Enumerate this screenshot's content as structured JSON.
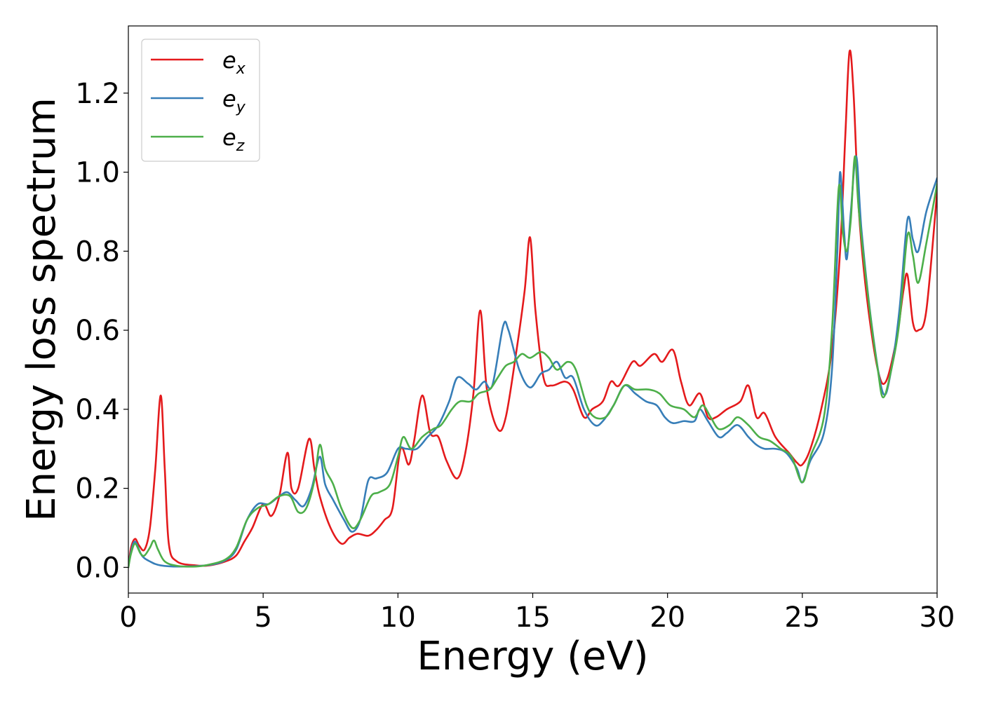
{
  "chart_data": {
    "type": "line",
    "title": "",
    "xlabel": "Energy (eV)",
    "ylabel": "Energy loss spectrum",
    "xlim": [
      0,
      30
    ],
    "ylim": [
      -0.065,
      1.37
    ],
    "xticks": [
      0,
      5,
      10,
      15,
      20,
      25,
      30
    ],
    "yticks": [
      0.0,
      0.2,
      0.4,
      0.6,
      0.8,
      1.0,
      1.2
    ],
    "xtick_labels": [
      "0",
      "5",
      "10",
      "15",
      "20",
      "25",
      "30"
    ],
    "ytick_labels": [
      "0.0",
      "0.2",
      "0.4",
      "0.6",
      "0.8",
      "1.0",
      "1.2"
    ],
    "grid": false,
    "legend_position": "top-left",
    "series": [
      {
        "name": "e_x",
        "label_base": "e",
        "label_sub": "x",
        "color": "#e41a1c",
        "points": [
          [
            0,
            0
          ],
          [
            0.1,
            0.05
          ],
          [
            0.25,
            0.072
          ],
          [
            0.4,
            0.055
          ],
          [
            0.6,
            0.045
          ],
          [
            0.8,
            0.1
          ],
          [
            1.0,
            0.25
          ],
          [
            1.2,
            0.435
          ],
          [
            1.35,
            0.25
          ],
          [
            1.5,
            0.06
          ],
          [
            1.8,
            0.015
          ],
          [
            2.5,
            0.005
          ],
          [
            3.0,
            0.005
          ],
          [
            3.6,
            0.015
          ],
          [
            4.0,
            0.03
          ],
          [
            4.3,
            0.065
          ],
          [
            4.6,
            0.1
          ],
          [
            5.0,
            0.16
          ],
          [
            5.3,
            0.13
          ],
          [
            5.6,
            0.18
          ],
          [
            5.9,
            0.29
          ],
          [
            6.05,
            0.2
          ],
          [
            6.3,
            0.2
          ],
          [
            6.7,
            0.325
          ],
          [
            6.9,
            0.25
          ],
          [
            7.1,
            0.18
          ],
          [
            7.5,
            0.1
          ],
          [
            7.9,
            0.06
          ],
          [
            8.2,
            0.075
          ],
          [
            8.5,
            0.085
          ],
          [
            8.9,
            0.08
          ],
          [
            9.2,
            0.095
          ],
          [
            9.5,
            0.12
          ],
          [
            9.8,
            0.15
          ],
          [
            10.1,
            0.3
          ],
          [
            10.4,
            0.26
          ],
          [
            10.6,
            0.32
          ],
          [
            10.9,
            0.435
          ],
          [
            11.2,
            0.34
          ],
          [
            11.5,
            0.33
          ],
          [
            11.8,
            0.27
          ],
          [
            12.2,
            0.225
          ],
          [
            12.5,
            0.29
          ],
          [
            12.8,
            0.44
          ],
          [
            13.05,
            0.65
          ],
          [
            13.3,
            0.45
          ],
          [
            13.7,
            0.35
          ],
          [
            14.0,
            0.38
          ],
          [
            14.4,
            0.55
          ],
          [
            14.7,
            0.7
          ],
          [
            14.9,
            0.835
          ],
          [
            15.1,
            0.65
          ],
          [
            15.4,
            0.48
          ],
          [
            15.7,
            0.46
          ],
          [
            16.2,
            0.47
          ],
          [
            16.5,
            0.45
          ],
          [
            16.9,
            0.38
          ],
          [
            17.2,
            0.4
          ],
          [
            17.6,
            0.42
          ],
          [
            17.9,
            0.47
          ],
          [
            18.2,
            0.46
          ],
          [
            18.7,
            0.52
          ],
          [
            19.0,
            0.51
          ],
          [
            19.5,
            0.54
          ],
          [
            19.8,
            0.52
          ],
          [
            20.2,
            0.55
          ],
          [
            20.5,
            0.47
          ],
          [
            20.8,
            0.41
          ],
          [
            21.2,
            0.44
          ],
          [
            21.5,
            0.38
          ],
          [
            21.8,
            0.38
          ],
          [
            22.2,
            0.4
          ],
          [
            22.7,
            0.42
          ],
          [
            23.0,
            0.46
          ],
          [
            23.3,
            0.38
          ],
          [
            23.6,
            0.39
          ],
          [
            24.0,
            0.33
          ],
          [
            24.5,
            0.29
          ],
          [
            24.8,
            0.265
          ],
          [
            25.0,
            0.26
          ],
          [
            25.3,
            0.3
          ],
          [
            25.7,
            0.4
          ],
          [
            26.1,
            0.55
          ],
          [
            26.4,
            0.8
          ],
          [
            26.6,
            1.1
          ],
          [
            26.75,
            1.305
          ],
          [
            26.9,
            1.2
          ],
          [
            27.1,
            0.9
          ],
          [
            27.4,
            0.68
          ],
          [
            27.8,
            0.5
          ],
          [
            28.1,
            0.47
          ],
          [
            28.5,
            0.58
          ],
          [
            28.75,
            0.7
          ],
          [
            28.9,
            0.74
          ],
          [
            29.1,
            0.62
          ],
          [
            29.3,
            0.6
          ],
          [
            29.6,
            0.65
          ],
          [
            30.0,
            0.95
          ]
        ]
      },
      {
        "name": "e_y",
        "label_base": "e",
        "label_sub": "y",
        "color": "#377eb8",
        "points": [
          [
            0,
            0
          ],
          [
            0.1,
            0.04
          ],
          [
            0.25,
            0.065
          ],
          [
            0.5,
            0.03
          ],
          [
            0.8,
            0.015
          ],
          [
            1.2,
            0.005
          ],
          [
            2.0,
            0.002
          ],
          [
            3.0,
            0.006
          ],
          [
            3.6,
            0.018
          ],
          [
            4.0,
            0.045
          ],
          [
            4.4,
            0.12
          ],
          [
            4.8,
            0.16
          ],
          [
            5.2,
            0.16
          ],
          [
            5.6,
            0.18
          ],
          [
            5.9,
            0.19
          ],
          [
            6.2,
            0.17
          ],
          [
            6.5,
            0.155
          ],
          [
            6.8,
            0.2
          ],
          [
            7.1,
            0.28
          ],
          [
            7.3,
            0.21
          ],
          [
            7.6,
            0.17
          ],
          [
            8.0,
            0.12
          ],
          [
            8.3,
            0.09
          ],
          [
            8.6,
            0.12
          ],
          [
            8.9,
            0.22
          ],
          [
            9.2,
            0.225
          ],
          [
            9.6,
            0.24
          ],
          [
            10.0,
            0.3
          ],
          [
            10.3,
            0.3
          ],
          [
            10.7,
            0.3
          ],
          [
            11.1,
            0.33
          ],
          [
            11.5,
            0.36
          ],
          [
            11.9,
            0.42
          ],
          [
            12.2,
            0.48
          ],
          [
            12.6,
            0.465
          ],
          [
            12.9,
            0.45
          ],
          [
            13.2,
            0.47
          ],
          [
            13.5,
            0.46
          ],
          [
            13.9,
            0.61
          ],
          [
            14.1,
            0.6
          ],
          [
            14.5,
            0.5
          ],
          [
            14.9,
            0.455
          ],
          [
            15.3,
            0.49
          ],
          [
            15.6,
            0.5
          ],
          [
            15.9,
            0.52
          ],
          [
            16.2,
            0.48
          ],
          [
            16.5,
            0.48
          ],
          [
            16.9,
            0.4
          ],
          [
            17.3,
            0.36
          ],
          [
            17.6,
            0.37
          ],
          [
            18.0,
            0.41
          ],
          [
            18.4,
            0.46
          ],
          [
            18.8,
            0.44
          ],
          [
            19.2,
            0.42
          ],
          [
            19.6,
            0.41
          ],
          [
            19.9,
            0.38
          ],
          [
            20.2,
            0.365
          ],
          [
            20.6,
            0.37
          ],
          [
            21.0,
            0.37
          ],
          [
            21.2,
            0.4
          ],
          [
            21.5,
            0.37
          ],
          [
            21.9,
            0.33
          ],
          [
            22.2,
            0.34
          ],
          [
            22.6,
            0.36
          ],
          [
            23.0,
            0.33
          ],
          [
            23.3,
            0.31
          ],
          [
            23.6,
            0.3
          ],
          [
            24.0,
            0.3
          ],
          [
            24.4,
            0.29
          ],
          [
            24.8,
            0.25
          ],
          [
            25.0,
            0.215
          ],
          [
            25.3,
            0.27
          ],
          [
            25.8,
            0.34
          ],
          [
            26.1,
            0.5
          ],
          [
            26.3,
            0.8
          ],
          [
            26.4,
            1.0
          ],
          [
            26.55,
            0.85
          ],
          [
            26.65,
            0.78
          ],
          [
            26.8,
            0.9
          ],
          [
            27.0,
            1.04
          ],
          [
            27.2,
            0.85
          ],
          [
            27.6,
            0.6
          ],
          [
            28.0,
            0.44
          ],
          [
            28.3,
            0.5
          ],
          [
            28.6,
            0.65
          ],
          [
            28.9,
            0.88
          ],
          [
            29.1,
            0.83
          ],
          [
            29.3,
            0.8
          ],
          [
            29.6,
            0.9
          ],
          [
            30.0,
            0.985
          ]
        ]
      },
      {
        "name": "e_z",
        "label_base": "e",
        "label_sub": "z",
        "color": "#4daf4a",
        "points": [
          [
            0,
            0
          ],
          [
            0.1,
            0.035
          ],
          [
            0.25,
            0.06
          ],
          [
            0.45,
            0.035
          ],
          [
            0.6,
            0.03
          ],
          [
            0.8,
            0.05
          ],
          [
            0.95,
            0.068
          ],
          [
            1.1,
            0.045
          ],
          [
            1.35,
            0.015
          ],
          [
            1.8,
            0.004
          ],
          [
            2.5,
            0.002
          ],
          [
            3.0,
            0.007
          ],
          [
            3.6,
            0.02
          ],
          [
            4.0,
            0.05
          ],
          [
            4.4,
            0.12
          ],
          [
            4.8,
            0.15
          ],
          [
            5.2,
            0.16
          ],
          [
            5.6,
            0.18
          ],
          [
            6.0,
            0.18
          ],
          [
            6.3,
            0.14
          ],
          [
            6.6,
            0.15
          ],
          [
            6.9,
            0.22
          ],
          [
            7.1,
            0.31
          ],
          [
            7.3,
            0.25
          ],
          [
            7.6,
            0.21
          ],
          [
            7.9,
            0.15
          ],
          [
            8.3,
            0.1
          ],
          [
            8.6,
            0.12
          ],
          [
            9.0,
            0.18
          ],
          [
            9.3,
            0.19
          ],
          [
            9.7,
            0.21
          ],
          [
            10.0,
            0.28
          ],
          [
            10.2,
            0.33
          ],
          [
            10.5,
            0.3
          ],
          [
            10.9,
            0.33
          ],
          [
            11.3,
            0.35
          ],
          [
            11.6,
            0.36
          ],
          [
            12.0,
            0.4
          ],
          [
            12.3,
            0.42
          ],
          [
            12.7,
            0.42
          ],
          [
            13.0,
            0.44
          ],
          [
            13.4,
            0.45
          ],
          [
            13.7,
            0.48
          ],
          [
            14.0,
            0.51
          ],
          [
            14.3,
            0.52
          ],
          [
            14.6,
            0.54
          ],
          [
            14.9,
            0.53
          ],
          [
            15.3,
            0.545
          ],
          [
            15.6,
            0.53
          ],
          [
            15.9,
            0.5
          ],
          [
            16.3,
            0.52
          ],
          [
            16.6,
            0.5
          ],
          [
            17.0,
            0.41
          ],
          [
            17.3,
            0.38
          ],
          [
            17.7,
            0.38
          ],
          [
            18.0,
            0.41
          ],
          [
            18.4,
            0.46
          ],
          [
            18.8,
            0.45
          ],
          [
            19.3,
            0.45
          ],
          [
            19.7,
            0.44
          ],
          [
            20.1,
            0.41
          ],
          [
            20.6,
            0.4
          ],
          [
            21.0,
            0.38
          ],
          [
            21.3,
            0.41
          ],
          [
            21.6,
            0.38
          ],
          [
            21.9,
            0.35
          ],
          [
            22.3,
            0.36
          ],
          [
            22.6,
            0.38
          ],
          [
            23.0,
            0.36
          ],
          [
            23.4,
            0.33
          ],
          [
            23.8,
            0.32
          ],
          [
            24.2,
            0.3
          ],
          [
            24.6,
            0.28
          ],
          [
            25.0,
            0.215
          ],
          [
            25.3,
            0.28
          ],
          [
            25.8,
            0.38
          ],
          [
            26.1,
            0.6
          ],
          [
            26.35,
            0.96
          ],
          [
            26.5,
            0.85
          ],
          [
            26.65,
            0.8
          ],
          [
            26.8,
            0.88
          ],
          [
            26.95,
            1.04
          ],
          [
            27.1,
            0.9
          ],
          [
            27.5,
            0.65
          ],
          [
            27.8,
            0.5
          ],
          [
            28.0,
            0.43
          ],
          [
            28.3,
            0.5
          ],
          [
            28.6,
            0.62
          ],
          [
            28.9,
            0.84
          ],
          [
            29.1,
            0.79
          ],
          [
            29.3,
            0.72
          ],
          [
            29.6,
            0.82
          ],
          [
            30.0,
            0.97
          ]
        ]
      }
    ]
  }
}
